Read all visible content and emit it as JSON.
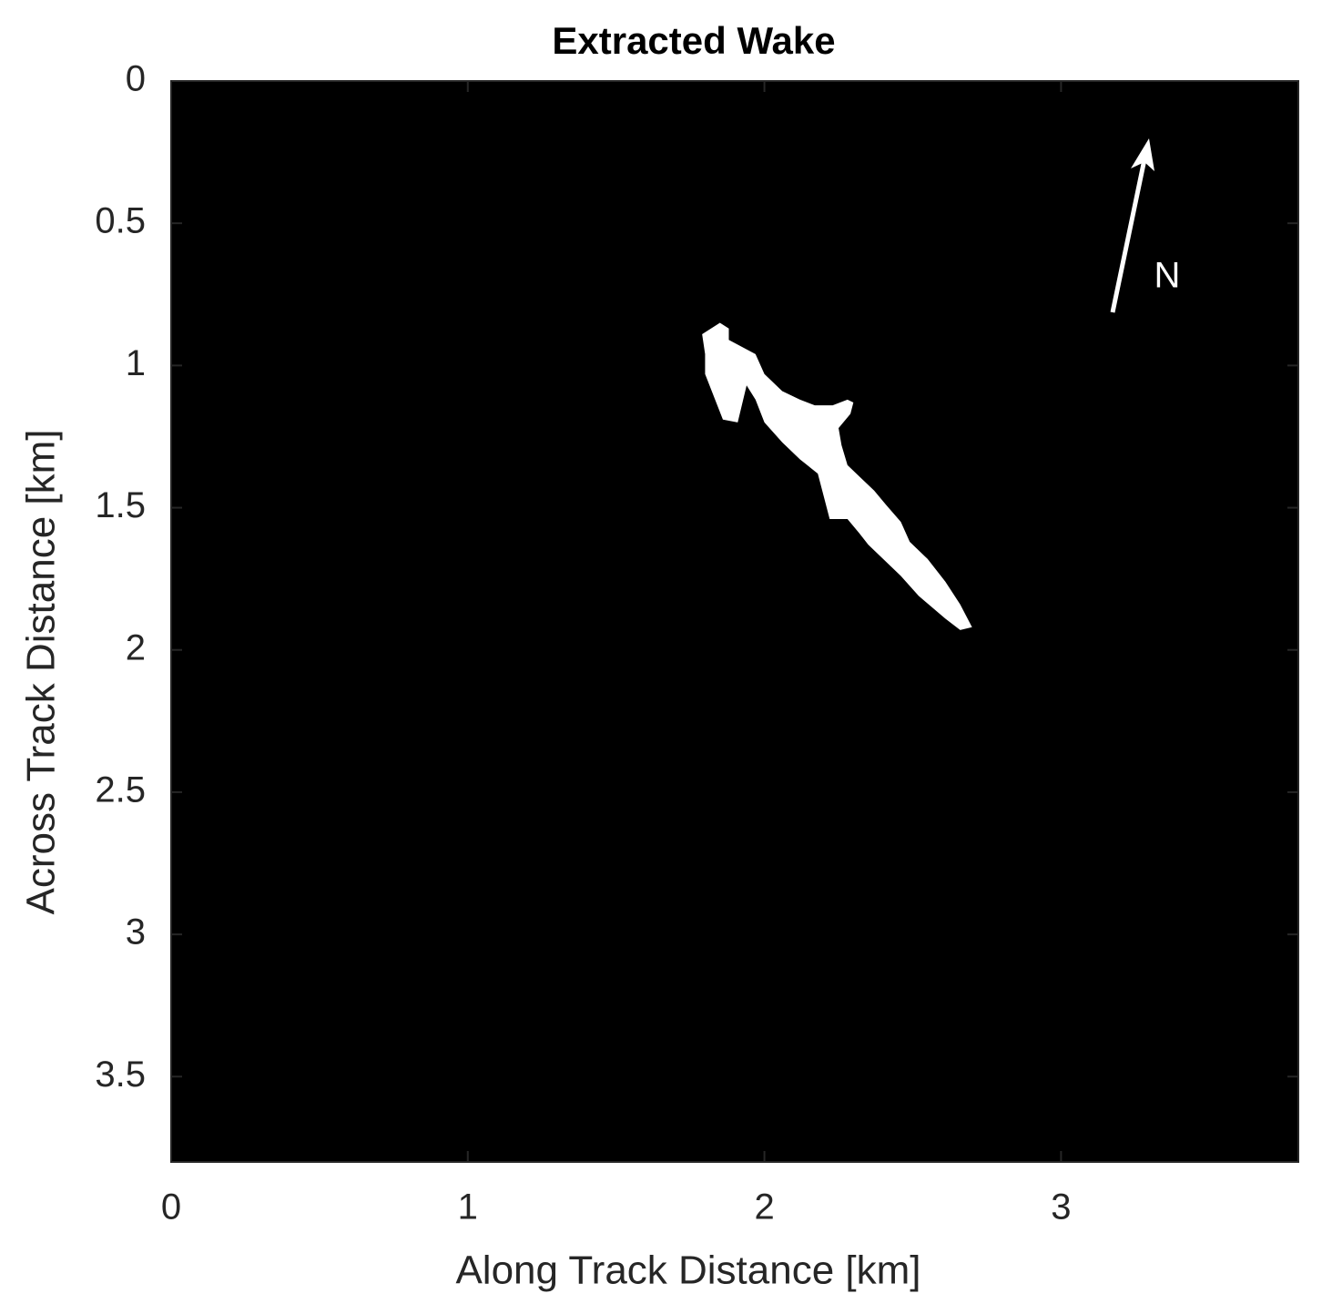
{
  "chart_data": {
    "type": "mask",
    "title": "Extracted Wake",
    "x_label": "Along Track Distance [km]",
    "y_label": "Across Track Distance [km]",
    "xlim": [
      0,
      3.8
    ],
    "ylim": [
      0,
      3.8
    ],
    "y_reversed": true,
    "xticks": [
      0,
      1,
      2,
      3
    ],
    "yticks": [
      0,
      0.5,
      1,
      1.5,
      2,
      2.5,
      3,
      3.5
    ],
    "background": "#000000",
    "color": "#ffffff",
    "annotation": "N",
    "x": [
      1.79,
      1.85,
      1.88,
      1.88,
      1.97,
      2.0,
      2.06,
      2.12,
      2.17,
      2.23,
      2.28,
      2.3,
      2.29,
      2.25,
      2.26,
      2.28,
      2.32,
      2.37,
      2.41,
      2.46,
      2.49,
      2.55,
      2.61,
      2.66,
      2.7,
      2.66,
      2.61,
      2.52,
      2.46,
      2.4,
      2.35,
      2.32,
      2.28,
      2.22,
      2.2,
      2.18,
      2.12,
      2.06,
      2.0,
      1.97,
      1.94,
      1.91,
      1.86,
      1.83,
      1.8,
      1.8
    ],
    "y": [
      0.89,
      0.85,
      0.87,
      0.91,
      0.96,
      1.03,
      1.09,
      1.12,
      1.14,
      1.14,
      1.12,
      1.13,
      1.17,
      1.22,
      1.28,
      1.35,
      1.39,
      1.44,
      1.49,
      1.55,
      1.62,
      1.68,
      1.76,
      1.84,
      1.92,
      1.93,
      1.89,
      1.81,
      1.74,
      1.68,
      1.63,
      1.59,
      1.54,
      1.54,
      1.46,
      1.38,
      1.33,
      1.27,
      1.2,
      1.12,
      1.07,
      1.2,
      1.19,
      1.11,
      1.03,
      0.96
    ]
  }
}
